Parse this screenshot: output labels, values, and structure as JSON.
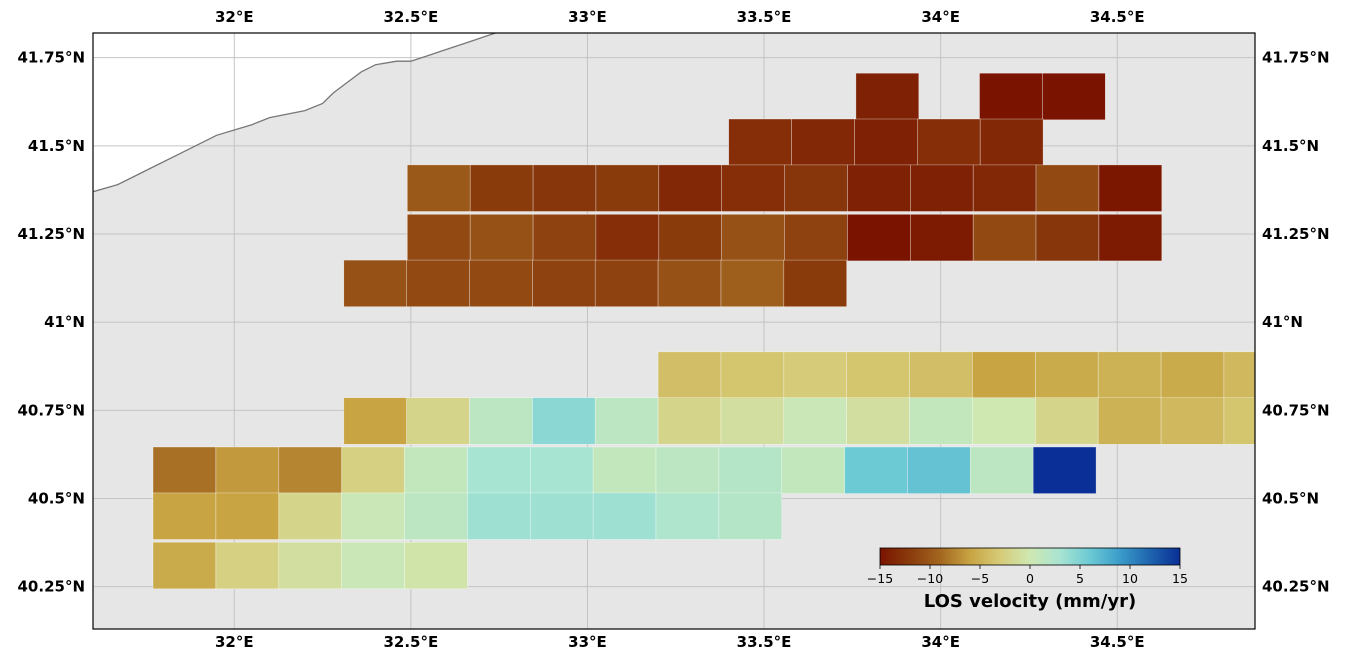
{
  "map": {
    "lon_range": [
      31.6,
      34.89
    ],
    "lat_range": [
      40.13,
      41.82
    ],
    "lon_ticks": [
      32,
      32.5,
      33,
      33.5,
      34,
      34.5
    ],
    "lon_tick_labels": [
      "32°E",
      "32.5°E",
      "33°E",
      "33.5°E",
      "34°E",
      "34.5°E"
    ],
    "lat_ticks": [
      41.75,
      41.5,
      41.25,
      41,
      40.75,
      40.5,
      40.25
    ],
    "lat_tick_labels": [
      "41.75°N",
      "41.5°N",
      "41.25°N",
      "41°N",
      "40.75°N",
      "40.5°N",
      "40.25°N"
    ],
    "land_color": "#e6e6e6",
    "sea_color": "#ffffff",
    "coastline_color": "#777777",
    "coastline": [
      [
        31.6,
        41.37
      ],
      [
        31.67,
        41.39
      ],
      [
        31.75,
        41.43
      ],
      [
        31.85,
        41.48
      ],
      [
        31.95,
        41.53
      ],
      [
        32.05,
        41.56
      ],
      [
        32.1,
        41.58
      ],
      [
        32.15,
        41.59
      ],
      [
        32.2,
        41.6
      ],
      [
        32.25,
        41.62
      ],
      [
        32.28,
        41.65
      ],
      [
        32.32,
        41.68
      ],
      [
        32.36,
        41.71
      ],
      [
        32.4,
        41.73
      ],
      [
        32.46,
        41.74
      ],
      [
        32.5,
        41.74
      ],
      [
        32.53,
        41.75
      ],
      [
        32.56,
        41.76
      ],
      [
        32.59,
        41.77
      ],
      [
        32.62,
        41.78
      ],
      [
        32.65,
        41.79
      ],
      [
        32.68,
        41.8
      ],
      [
        32.71,
        41.81
      ],
      [
        32.74,
        41.82
      ]
    ]
  },
  "velocity_grid": {
    "units": "mm/yr",
    "cell_size_deg": [
      0.178,
      0.132
    ],
    "rows": [
      {
        "lat": 41.64,
        "lon_start": 33.76,
        "values": [
          -14.0
        ]
      },
      {
        "lat": 41.64,
        "lon_start": 34.11,
        "values": [
          -15.0,
          -15.0
        ]
      },
      {
        "lat": 41.51,
        "lon_start": 33.4,
        "values": [
          -13.0,
          -13.5,
          -14.0,
          -13.0,
          -13.5
        ]
      },
      {
        "lat": 41.38,
        "lon_start": 32.49,
        "values": [
          -10.0,
          -12.0,
          -12.5,
          -12.0,
          -13.5,
          -13.0,
          -12.5,
          -14.0,
          -14.0,
          -13.5,
          -11.0,
          -14.8
        ]
      },
      {
        "lat": 41.24,
        "lon_start": 32.49,
        "values": [
          -11.0,
          -10.5,
          -11.5,
          -13.0,
          -12.0,
          -10.5,
          -11.5,
          -15.0,
          -14.5,
          -11.0,
          -12.5,
          -14.5
        ]
      },
      {
        "lat": 41.11,
        "lon_start": 32.31,
        "values": [
          -10.5,
          -11.0,
          -11.0,
          -11.5,
          -11.5,
          -10.5,
          -9.5,
          -12.0
        ]
      },
      {
        "lat": 40.85,
        "lon_start": 33.2,
        "values": [
          -4.0,
          -3.5,
          -3.0,
          -3.5,
          -4.0,
          -6.0,
          -5.5,
          -5.0,
          -5.5,
          -4.5
        ]
      },
      {
        "lat": 40.72,
        "lon_start": 32.31,
        "values": [
          -6.0,
          -2.0,
          1.5,
          4.5,
          1.5,
          -2.0,
          -1.0,
          0.5,
          -1.0,
          1.0,
          0.0,
          -2.0,
          -5.0,
          -4.5,
          -3.5
        ]
      },
      {
        "lat": 40.58,
        "lon_start": 31.77,
        "values": [
          -8.5,
          -6.5,
          -7.5,
          -2.5,
          1.0,
          3.0,
          3.0,
          1.0,
          1.5,
          2.0,
          1.0,
          6.0,
          6.5,
          1.5,
          15.0
        ]
      },
      {
        "lat": 40.45,
        "lon_start": 31.77,
        "values": [
          -6.0,
          -6.0,
          -2.0,
          0.5,
          1.5,
          3.5,
          3.5,
          3.5,
          2.5,
          2.0
        ]
      },
      {
        "lat": 40.31,
        "lon_start": 31.77,
        "values": [
          -5.5,
          -2.5,
          -1.0,
          0.5,
          -0.5
        ]
      }
    ]
  },
  "colorbar": {
    "vmin": -15,
    "vmax": 15,
    "ticks": [
      -15,
      -10,
      -5,
      0,
      5,
      10,
      15
    ],
    "tick_labels": [
      "−15",
      "−10",
      "−5",
      "0",
      "5",
      "10",
      "15"
    ],
    "label": "LOS velocity (mm/yr)",
    "stops": [
      [
        -15,
        "#7a1400"
      ],
      [
        -12,
        "#8a3b0c"
      ],
      [
        -9,
        "#a2661f"
      ],
      [
        -6,
        "#c8a443"
      ],
      [
        -3,
        "#d6cb78"
      ],
      [
        0,
        "#cfe8b2"
      ],
      [
        3,
        "#a8e4d2"
      ],
      [
        6,
        "#6ccad4"
      ],
      [
        9,
        "#3b9cca"
      ],
      [
        12,
        "#1e64ae"
      ],
      [
        15,
        "#0a2f96"
      ]
    ]
  }
}
